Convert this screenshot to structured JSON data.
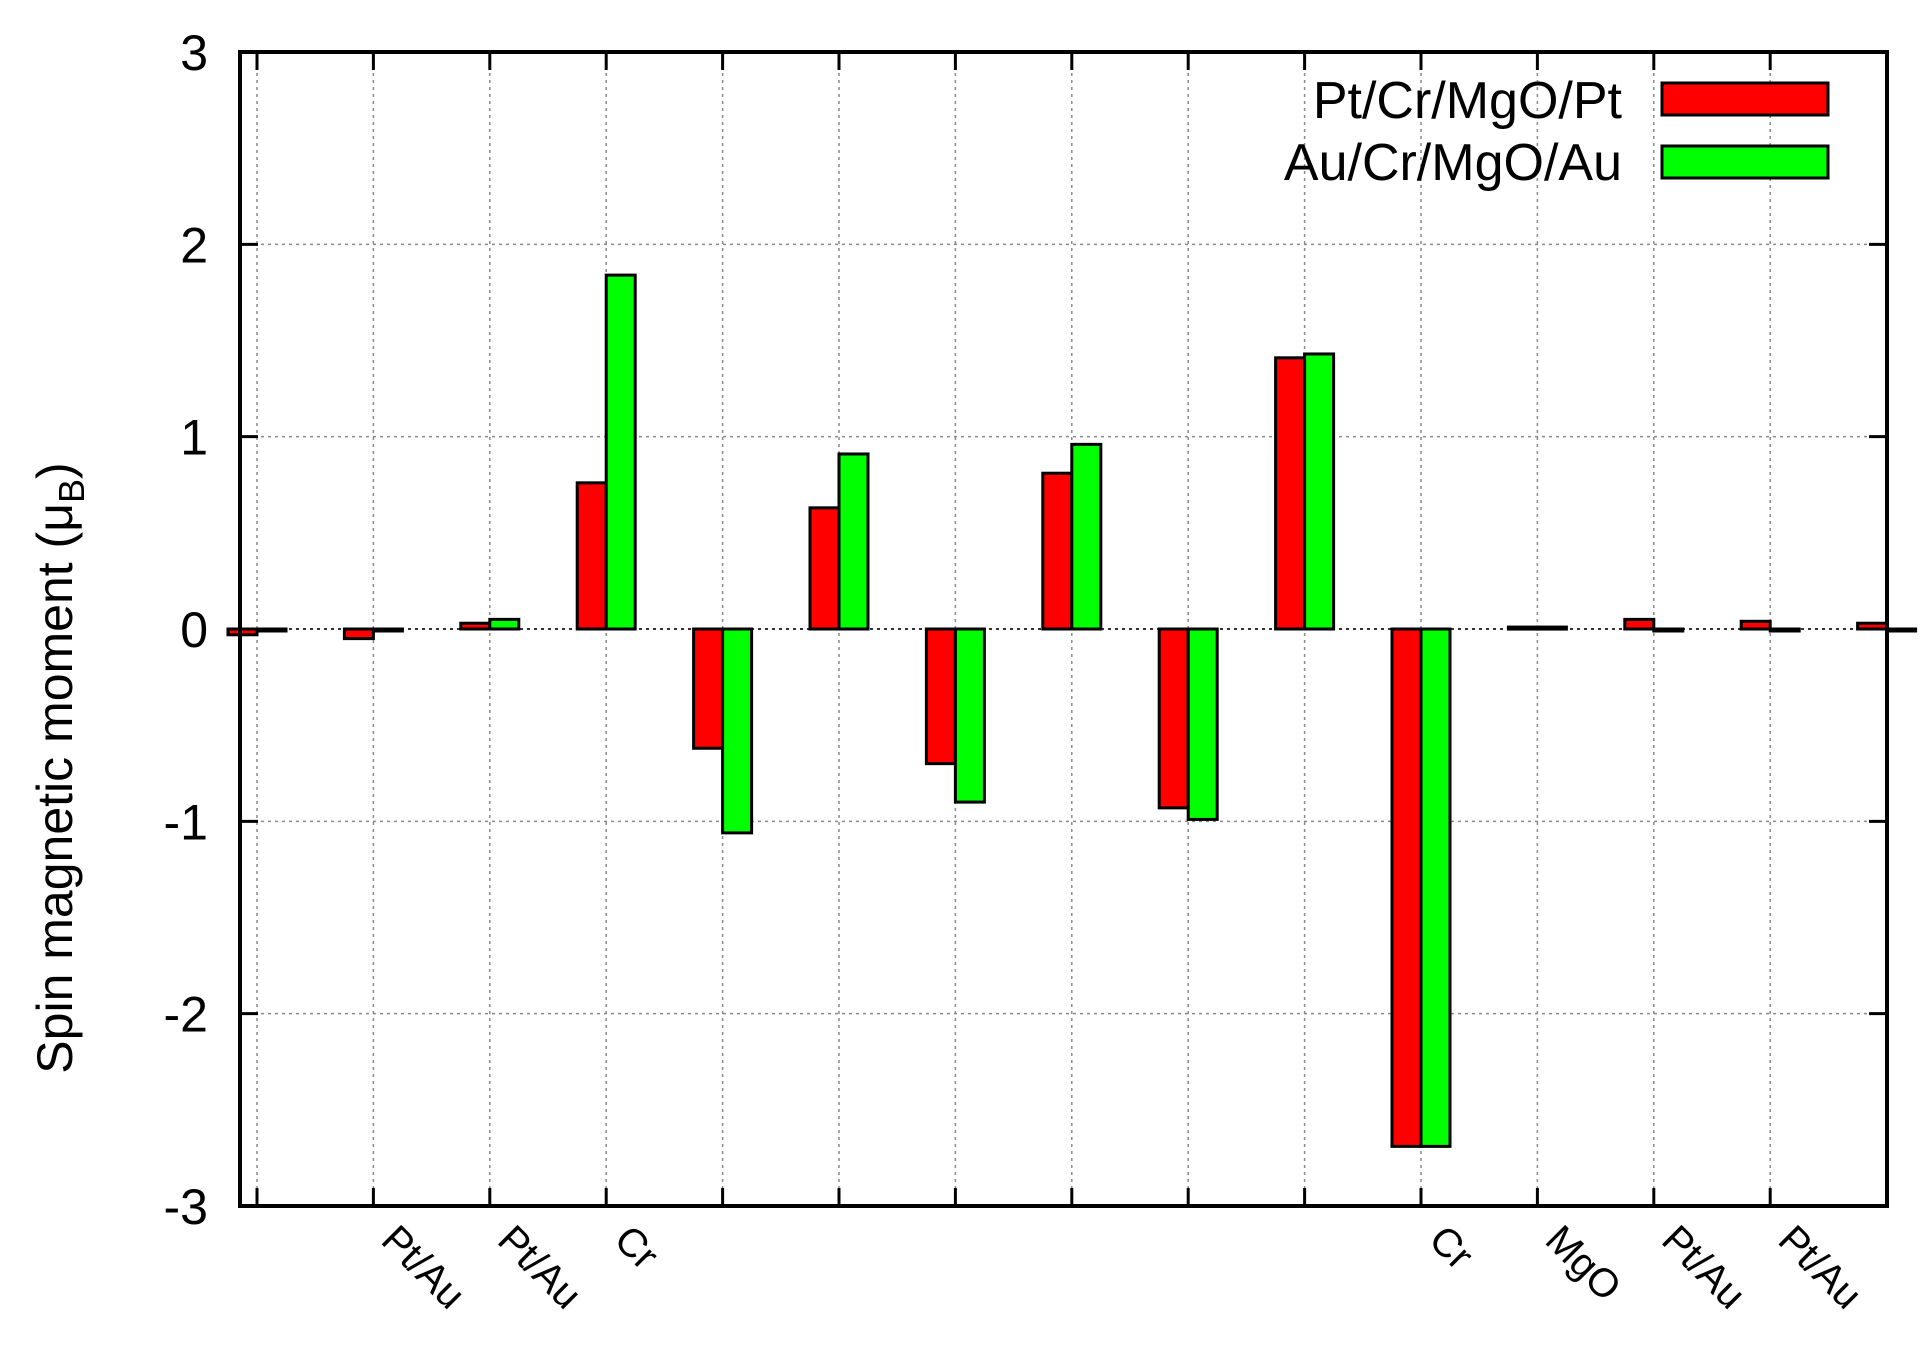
{
  "chart_data": {
    "type": "bar",
    "title": "",
    "xlabel": "",
    "ylabel_main": "Spin magnetic moment (μ",
    "ylabel_sub": "B",
    "ylabel_close": ")",
    "ylim": [
      -3,
      3
    ],
    "yticks": [
      3,
      2,
      1,
      0,
      -1,
      -2,
      -3
    ],
    "grid": true,
    "legend_position": "top-right",
    "categories": [
      "",
      "Pt/Au",
      "Pt/Au",
      "Cr",
      "",
      "",
      "",
      "",
      "",
      "",
      "Cr",
      "MgO",
      "Pt/Au",
      "Pt/Au",
      ""
    ],
    "series": [
      {
        "name": "Pt/Cr/MgO/Pt",
        "color": "#ff0000",
        "values": [
          -0.03,
          -0.05,
          0.03,
          0.76,
          -0.62,
          0.63,
          -0.7,
          0.81,
          -0.93,
          1.41,
          -2.69,
          0.01,
          0.05,
          0.04,
          0.03
        ]
      },
      {
        "name": "Au/Cr/MgO/Au",
        "color": "#00ff00",
        "values": [
          0.0,
          0.0,
          0.05,
          1.84,
          -1.06,
          0.91,
          -0.9,
          0.96,
          -0.99,
          1.43,
          -2.69,
          0.01,
          0.0,
          0.0,
          0.0
        ]
      }
    ]
  }
}
